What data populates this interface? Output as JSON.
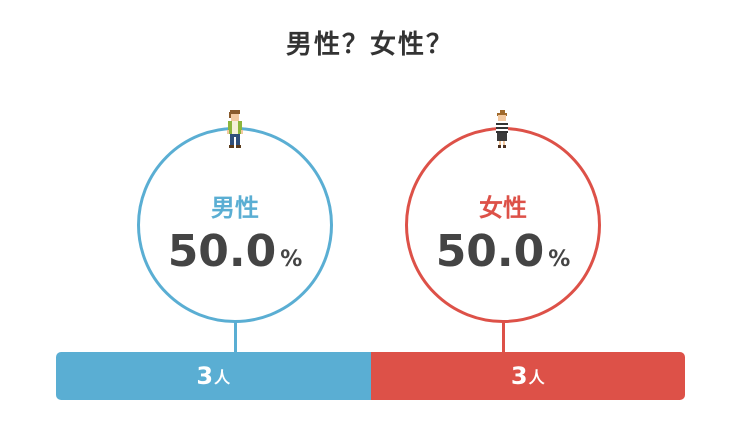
{
  "title": "男性？女性？",
  "colors": {
    "male": "#5aaed3",
    "female": "#dd5148"
  },
  "male": {
    "label": "男性",
    "percent": "50.0",
    "percent_unit": "%",
    "count": "3",
    "count_unit": "人",
    "share": 0.5,
    "icon": "man-icon"
  },
  "female": {
    "label": "女性",
    "percent": "50.0",
    "percent_unit": "%",
    "count": "3",
    "count_unit": "人",
    "share": 0.5,
    "icon": "woman-icon"
  }
}
